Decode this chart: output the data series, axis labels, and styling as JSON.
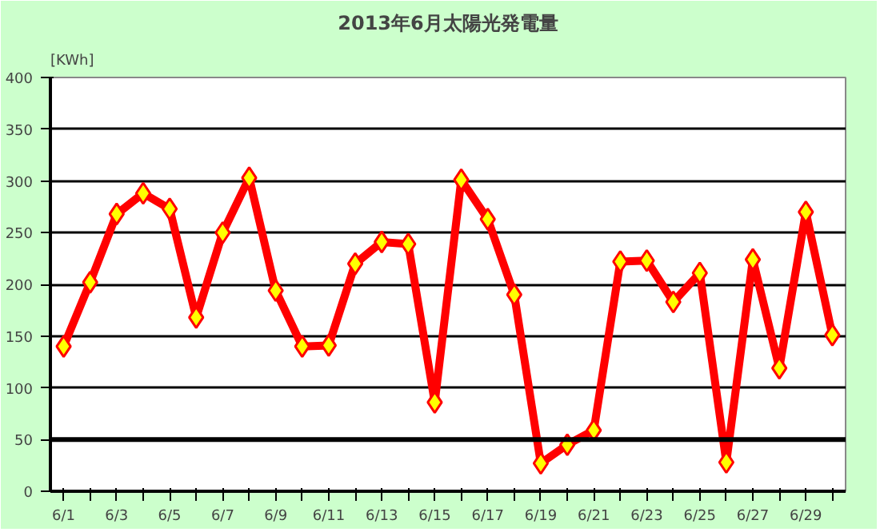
{
  "chart_data": {
    "type": "line",
    "title": "2013年6月太陽光発電量",
    "ylabel": "[KWh]",
    "categories": [
      "6/1",
      null,
      "6/3",
      null,
      "6/5",
      null,
      "6/7",
      null,
      "6/9",
      null,
      "6/11",
      null,
      "6/13",
      null,
      "6/15",
      null,
      "6/17",
      null,
      "6/19",
      null,
      "6/21",
      null,
      "6/23",
      null,
      "6/25",
      null,
      "6/27",
      null,
      "6/29",
      null
    ],
    "series": [
      {
        "color": "#ff0000",
        "values": [
          140,
          202,
          268,
          288,
          273,
          168,
          250,
          303,
          194,
          140,
          141,
          220,
          241,
          239,
          86,
          301,
          263,
          190,
          27,
          45,
          59,
          222,
          223,
          183,
          211,
          28,
          224,
          119,
          270,
          151
        ]
      }
    ],
    "ylim": [
      0,
      400
    ],
    "yticks": [
      0,
      50,
      100,
      150,
      200,
      250,
      300,
      350,
      400
    ],
    "ref_lines": [
      {
        "axis": "y",
        "value": 50,
        "label": null,
        "color": "#000000"
      }
    ],
    "grid": "y",
    "marker": "diamond",
    "line_style": "solid"
  }
}
